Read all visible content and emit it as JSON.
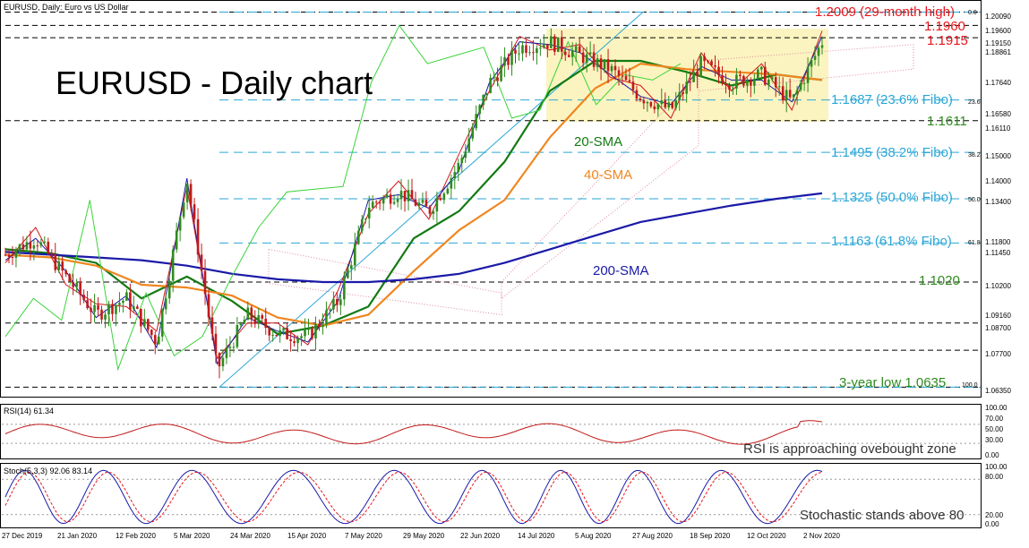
{
  "header": {
    "symbol": "EURUSD, Daily:  Euro vs US Dollar",
    "title": "EURUSD - Daily chart"
  },
  "price_axis": {
    "ticks": [
      "1.20090",
      "1.19600",
      "1.19150",
      "1.18861",
      "1.17640",
      "1.16580",
      "1.16110",
      "1.15000",
      "1.14000",
      "1.13400",
      "1.11800",
      "1.11450",
      "1.10200",
      "1.09160",
      "1.08700",
      "1.07700",
      "1.06350"
    ]
  },
  "levels": {
    "high": "1.2009 (29-month high)",
    "r1960": "1.1960",
    "r1915": "1.1915",
    "s1611": "1.1611",
    "s1020": "1.1020",
    "low": "3-year low 1.0635",
    "fib236": "1.1687 (23.6% Fibo)",
    "fib382": "1.1495 (38.2% Fibo)",
    "fib500": "1.1325 (50.0% Fibo)",
    "fib618": "1.1163 (61.8% Fibo)",
    "fib236_small": "23.6",
    "fib382_small": "38.2",
    "fib500_small": "50.0",
    "fib618_small": "61.8",
    "fib0_small": "0.0",
    "fib100_small": "100.0"
  },
  "ma_labels": {
    "sma20": "20-SMA",
    "sma40": "40-SMA",
    "sma200": "200-SMA"
  },
  "rsi_panel": {
    "header": "RSI(14) 61.34",
    "ticks": [
      "100.00",
      "70.00",
      "50.00",
      "30.00",
      "0.00"
    ],
    "note": "RSI is approaching ovebought zone"
  },
  "stoch_panel": {
    "header": "Stoch(5,3,3) 92.06 83.14",
    "ticks": [
      "100.00",
      "80.00",
      "20.00",
      "0.00"
    ],
    "note": "Stochastic stands above 80"
  },
  "date_axis": [
    "27 Dec 2019",
    "21 Jan 2020",
    "12 Feb 2020",
    "5 Mar 2020",
    "24 Mar 2020",
    "15 Apr 2020",
    "7 May 2020",
    "29 May 2020",
    "22 Jun 2020",
    "14 Jul 2020",
    "5 Aug 2020",
    "27 Aug 2020",
    "18 Sep 2020",
    "12 Oct 2020",
    "2 Nov 2020"
  ],
  "colors": {
    "bull": "#2e8b1e",
    "bear": "#c21a1a",
    "sma20": "#127a12",
    "sma40": "#f0861f",
    "sma200": "#1a1aa8",
    "tenkan": "#d4141c",
    "kijun": "#1a1aa8",
    "chikou": "#3ad43a",
    "cloud": "#e08aa0",
    "rect": "#fbf4c0",
    "fib": "#2aa6d6"
  },
  "chart_data": {
    "type": "candlestick",
    "instrument": "EURUSD",
    "timeframe": "Daily",
    "ylim": [
      1.06,
      1.204
    ],
    "horizontal_levels": [
      1.2009,
      1.196,
      1.1915,
      1.1611,
      1.102,
      1.087,
      1.077,
      1.0635
    ],
    "fibonacci": {
      "0.0": 1.2009,
      "23.6": 1.1687,
      "38.2": 1.1495,
      "50.0": 1.1325,
      "61.8": 1.1163,
      "100.0": 1.0635
    },
    "consolidation_range": [
      1.1611,
      1.196
    ],
    "series": [
      {
        "name": "20-SMA",
        "values": [
          1.114,
          1.1125,
          1.109,
          1.096,
          1.104,
          1.095,
          1.083,
          1.086,
          1.093,
          1.118,
          1.128,
          1.146,
          1.172,
          1.183,
          1.183,
          1.179,
          1.174,
          1.178,
          1.176
        ]
      },
      {
        "name": "40-SMA",
        "values": [
          1.112,
          1.111,
          1.108,
          1.101,
          1.1,
          1.097,
          1.089,
          1.086,
          1.09,
          1.106,
          1.121,
          1.132,
          1.155,
          1.173,
          1.182,
          1.18,
          1.179,
          1.178,
          1.176
        ]
      },
      {
        "name": "200-SMA",
        "values": [
          1.113,
          1.112,
          1.111,
          1.11,
          1.108,
          1.105,
          1.103,
          1.102,
          1.102,
          1.103,
          1.105,
          1.109,
          1.114,
          1.119,
          1.124,
          1.127,
          1.13,
          1.1325,
          1.1345
        ]
      }
    ],
    "rsi": {
      "period": 14,
      "last": 61.34,
      "overbought": 70,
      "oversold": 30
    },
    "stochastic": {
      "params": "5,3,3",
      "k": 92.06,
      "d": 83.14,
      "overbought": 80,
      "oversold": 20
    }
  }
}
